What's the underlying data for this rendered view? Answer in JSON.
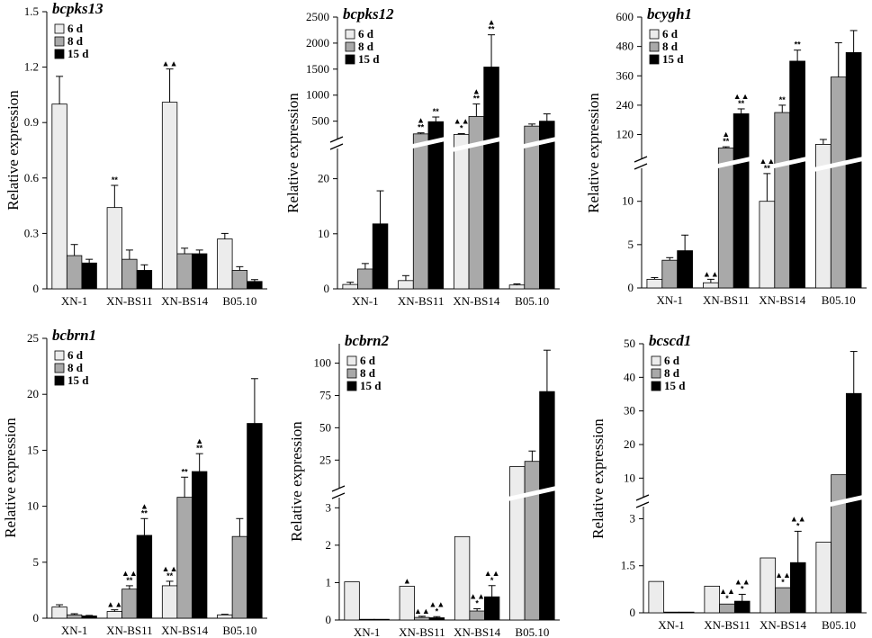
{
  "colors": {
    "d6": "#ececec",
    "d8": "#a9a9a9",
    "d15": "#000000",
    "stroke": "#000000",
    "break": "#ffffff"
  },
  "chart_data": [
    {
      "type": "bar",
      "title": "bcpks13",
      "ylabel": "Relative expression",
      "categories": [
        "XN-1",
        "XN-BS11",
        "XN-BS14",
        "B05.10"
      ],
      "legend": [
        "6 d",
        "8 d",
        "15 d"
      ],
      "yticks": [
        "0",
        "0.3",
        "0.6",
        "0.9",
        "1.2",
        "1.5"
      ],
      "ylim": [
        0,
        1.5
      ],
      "broken": false,
      "series": [
        {
          "name": "6 d",
          "values": [
            1.0,
            0.44,
            1.01,
            0.27
          ],
          "errors": [
            0.15,
            0.12,
            0.18,
            0.03
          ]
        },
        {
          "name": "8 d",
          "values": [
            0.18,
            0.16,
            0.19,
            0.1
          ],
          "errors": [
            0.06,
            0.05,
            0.03,
            0.02
          ]
        },
        {
          "name": "15 d",
          "values": [
            0.14,
            0.1,
            0.19,
            0.04
          ],
          "errors": [
            0.02,
            0.03,
            0.02,
            0.01
          ]
        }
      ],
      "annotations": [
        {
          "group": 1,
          "series": 0,
          "lines": [
            "**"
          ]
        },
        {
          "group": 2,
          "series": 0,
          "lines": [
            "▲▲"
          ]
        }
      ]
    },
    {
      "type": "bar",
      "title": "bcpks12",
      "ylabel": "Relative expression",
      "categories": [
        "XN-1",
        "XN-BS11",
        "XN-BS14",
        "B05.10"
      ],
      "legend": [
        "6 d",
        "8 d",
        "15 d"
      ],
      "yticks_lower": [
        "0",
        "10",
        "20"
      ],
      "yticks_upper": [
        "500",
        "1000",
        "1500",
        "2000",
        "2500"
      ],
      "lower_range": [
        0,
        25
      ],
      "upper_range": [
        200,
        2500
      ],
      "broken": true,
      "series": [
        {
          "name": "6 d",
          "values": [
            0.8,
            1.5,
            245,
            0.7
          ],
          "errors": [
            0.4,
            0.9,
            15,
            0.2
          ]
        },
        {
          "name": "8 d",
          "values": [
            3.6,
            255,
            590,
            405
          ],
          "errors": [
            1.0,
            20,
            240,
            40
          ]
        },
        {
          "name": "15 d",
          "values": [
            11.8,
            490,
            1540,
            500
          ],
          "errors": [
            6.0,
            90,
            620,
            140
          ]
        }
      ],
      "annotations": [
        {
          "group": 1,
          "series": 1,
          "lines": [
            "▲",
            "**"
          ]
        },
        {
          "group": 1,
          "series": 2,
          "lines": [
            "**"
          ]
        },
        {
          "group": 2,
          "series": 0,
          "lines": [
            "▲▲",
            "*"
          ]
        },
        {
          "group": 2,
          "series": 1,
          "lines": [
            "▲",
            "**"
          ]
        },
        {
          "group": 2,
          "series": 2,
          "lines": [
            "▲",
            "**"
          ]
        }
      ]
    },
    {
      "type": "bar",
      "title": "bcygh1",
      "ylabel": "Relative expression",
      "categories": [
        "XN-1",
        "XN-BS11",
        "XN-BS14",
        "B05.10"
      ],
      "legend": [
        "6 d",
        "8 d",
        "15 d"
      ],
      "yticks_lower": [
        "0",
        "5",
        "10"
      ],
      "yticks_upper": [
        "120",
        "240",
        "360",
        "480",
        "600"
      ],
      "lower_range": [
        0,
        13.5
      ],
      "upper_range": [
        30,
        600
      ],
      "broken": true,
      "series": [
        {
          "name": "6 d",
          "values": [
            1.0,
            0.6,
            10.0,
            80
          ],
          "errors": [
            0.2,
            0.4,
            3.2,
            20
          ]
        },
        {
          "name": "8 d",
          "values": [
            3.2,
            65,
            210,
            355
          ],
          "errors": [
            0.3,
            5,
            30,
            140
          ]
        },
        {
          "name": "15 d",
          "values": [
            4.3,
            205,
            420,
            455
          ],
          "errors": [
            1.8,
            20,
            45,
            90
          ]
        }
      ],
      "annotations": [
        {
          "group": 1,
          "series": 0,
          "lines": [
            "▲▲"
          ]
        },
        {
          "group": 1,
          "series": 1,
          "lines": [
            "▲",
            "**"
          ]
        },
        {
          "group": 1,
          "series": 2,
          "lines": [
            "▲▲",
            "**"
          ]
        },
        {
          "group": 2,
          "series": 0,
          "lines": [
            "▲▲",
            "**"
          ]
        },
        {
          "group": 2,
          "series": 1,
          "lines": [
            "**"
          ]
        },
        {
          "group": 2,
          "series": 2,
          "lines": [
            "**"
          ]
        }
      ]
    },
    {
      "type": "bar",
      "title": "bcbrn1",
      "ylabel": "Relative expression",
      "categories": [
        "XN-1",
        "XN-BS11",
        "XN-BS14",
        "B05.10"
      ],
      "legend": [
        "6 d",
        "8 d",
        "15 d"
      ],
      "yticks": [
        "0",
        "5",
        "10",
        "15",
        "20",
        "25"
      ],
      "ylim": [
        0,
        25
      ],
      "broken": false,
      "series": [
        {
          "name": "6 d",
          "values": [
            1.0,
            0.6,
            2.9,
            0.3
          ],
          "errors": [
            0.2,
            0.15,
            0.4,
            0.05
          ]
        },
        {
          "name": "8 d",
          "values": [
            0.3,
            2.6,
            10.8,
            7.3
          ],
          "errors": [
            0.1,
            0.3,
            1.8,
            1.6
          ]
        },
        {
          "name": "15 d",
          "values": [
            0.2,
            7.4,
            13.1,
            17.4
          ],
          "errors": [
            0.05,
            1.5,
            1.6,
            4.0
          ]
        }
      ],
      "annotations": [
        {
          "group": 1,
          "series": 0,
          "lines": [
            "▲▲"
          ]
        },
        {
          "group": 1,
          "series": 1,
          "lines": [
            "▲▲",
            "**"
          ]
        },
        {
          "group": 1,
          "series": 2,
          "lines": [
            "▲",
            "**"
          ]
        },
        {
          "group": 2,
          "series": 0,
          "lines": [
            "▲▲",
            "**"
          ]
        },
        {
          "group": 2,
          "series": 1,
          "lines": [
            "**"
          ]
        },
        {
          "group": 2,
          "series": 2,
          "lines": [
            "▲",
            "**"
          ]
        }
      ]
    },
    {
      "type": "bar",
      "title": "bcbrn2",
      "ylabel": "Relative expression",
      "categories": [
        "XN-1",
        "XN-BS11",
        "XN-BS14",
        "B05.10"
      ],
      "legend": [
        "6 d",
        "8 d",
        "15 d"
      ],
      "yticks_lower": [
        "0",
        "1",
        "2",
        "3"
      ],
      "yticks_upper": [
        "25",
        "50",
        "75",
        "100"
      ],
      "lower_range": [
        0,
        3.2
      ],
      "upper_range": [
        5,
        115
      ],
      "broken": true,
      "series": [
        {
          "name": "6 d",
          "values": [
            1.02,
            0.9,
            2.23,
            20
          ]
        },
        {
          "name": "8 d",
          "values": [
            0.0,
            0.07,
            0.24,
            24
          ],
          "errors": [
            0,
            0.03,
            0.06,
            8
          ]
        },
        {
          "name": "15 d",
          "values": [
            0.0,
            0.06,
            0.62,
            78
          ],
          "errors": [
            0,
            0.03,
            0.3,
            32
          ]
        }
      ],
      "annotations": [
        {
          "group": 1,
          "series": 0,
          "lines": [
            "▲"
          ]
        },
        {
          "group": 1,
          "series": 1,
          "lines": [
            "▲▲"
          ]
        },
        {
          "group": 1,
          "series": 2,
          "lines": [
            "▲▲",
            "*"
          ]
        },
        {
          "group": 2,
          "series": 1,
          "lines": [
            "▲▲",
            "*"
          ]
        },
        {
          "group": 2,
          "series": 2,
          "lines": [
            "▲▲",
            "*"
          ]
        }
      ]
    },
    {
      "type": "bar",
      "title": "bcscd1",
      "ylabel": "Relative expression",
      "categories": [
        "XN-1",
        "XN-BS11",
        "XN-BS14",
        "B05.10"
      ],
      "legend": [
        "6 d",
        "8 d",
        "15 d"
      ],
      "yticks_lower": [
        "0",
        "1.5",
        "3"
      ],
      "yticks_upper": [
        "10",
        "20",
        "30",
        "40",
        "50"
      ],
      "lower_range": [
        0,
        3.3
      ],
      "upper_range": [
        5,
        50
      ],
      "broken": true,
      "series": [
        {
          "name": "6 d",
          "values": [
            1.0,
            0.85,
            1.75,
            2.25
          ]
        },
        {
          "name": "8 d",
          "values": [
            0.02,
            0.28,
            0.8,
            11
          ]
        },
        {
          "name": "15 d",
          "values": [
            0.01,
            0.37,
            1.6,
            35.2
          ],
          "errors": [
            0,
            0.22,
            1.0,
            12.5
          ]
        }
      ],
      "annotations": [
        {
          "group": 1,
          "series": 1,
          "lines": [
            "▲▲",
            "*"
          ]
        },
        {
          "group": 1,
          "series": 2,
          "lines": [
            "▲▲",
            "*"
          ]
        },
        {
          "group": 2,
          "series": 1,
          "lines": [
            "▲▲",
            "*"
          ]
        },
        {
          "group": 2,
          "series": 2,
          "lines": [
            "▲▲",
            "*"
          ]
        }
      ]
    }
  ]
}
